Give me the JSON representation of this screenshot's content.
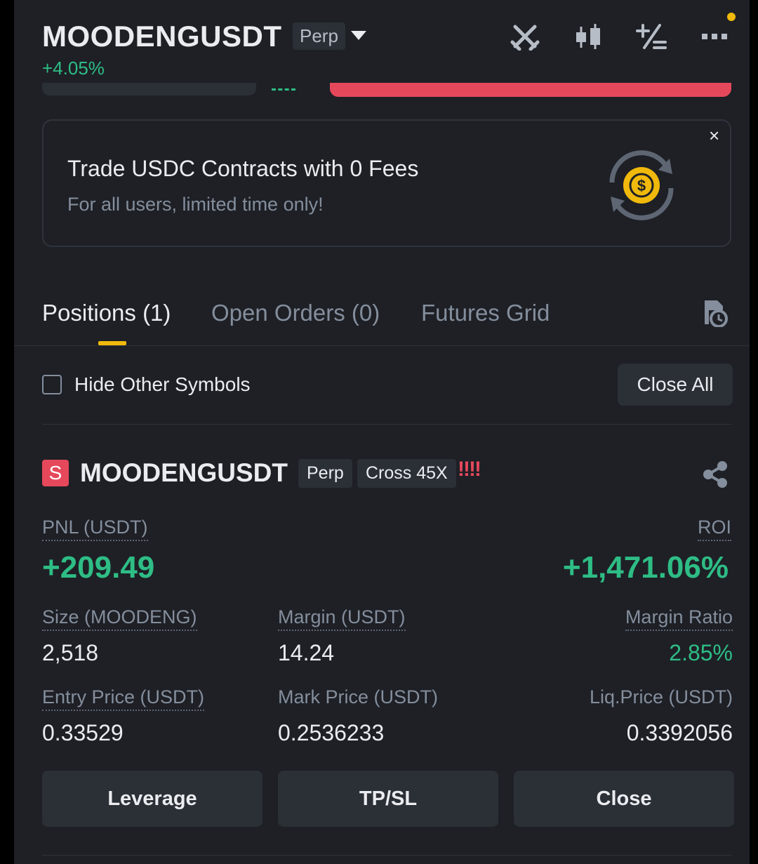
{
  "header": {
    "symbol": "MOODENGUSDT",
    "contract_type": "Perp",
    "change": "+4.05%",
    "icons": [
      "sword-cross-icon",
      "candlestick-icon",
      "plus-minus-icon",
      "more-icon"
    ]
  },
  "banner": {
    "title": "Trade USDC Contracts with 0 Fees",
    "subtitle": "For all users, limited time only!",
    "close_glyph": "×",
    "icon": "usdc-coin-swap-icon"
  },
  "tabs": [
    {
      "label": "Positions (1)",
      "active": true
    },
    {
      "label": "Open Orders (0)",
      "active": false
    },
    {
      "label": "Futures Grid",
      "active": false
    }
  ],
  "filter": {
    "hide_label": "Hide Other Symbols",
    "hide_checked": false,
    "close_all_label": "Close All"
  },
  "position": {
    "side_badge": "S",
    "symbol": "MOODENGUSDT",
    "contract_type": "Perp",
    "margin_mode": "Cross 45X",
    "warning": "!!!!",
    "pnl_label": "PNL (USDT)",
    "pnl_value": "+209.49",
    "roi_label": "ROI",
    "roi_value": "+1,471.06%",
    "size_label": "Size (MOODENG)",
    "size_value": "2,518",
    "margin_label": "Margin (USDT)",
    "margin_value": "14.24",
    "margin_ratio_label": "Margin Ratio",
    "margin_ratio_value": "2.85%",
    "entry_label": "Entry Price (USDT)",
    "entry_value": "0.33529",
    "mark_label": "Mark Price (USDT)",
    "mark_value": "0.2536233",
    "liq_label": "Liq.Price (USDT)",
    "liq_value": "0.3392056"
  },
  "actions": {
    "leverage": "Leverage",
    "tpsl": "TP/SL",
    "close": "Close"
  },
  "colors": {
    "background": "#1e2026",
    "green": "#2ebd85",
    "red": "#e6485b",
    "accent": "#f0b90b",
    "muted": "#848e9c"
  }
}
